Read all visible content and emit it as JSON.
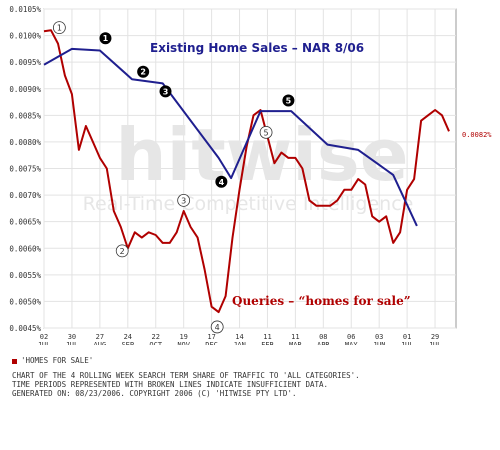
{
  "chart_data": {
    "type": "line",
    "y_ticks": [
      "0.0105%",
      "0.0100%",
      "0.0095%",
      "0.0090%",
      "0.0085%",
      "0.0080%",
      "0.0075%",
      "0.0070%",
      "0.0065%",
      "0.0060%",
      "0.0055%",
      "0.0050%",
      "0.0045%"
    ],
    "x_ticks": [
      {
        "day": "02",
        "mon": "JUL"
      },
      {
        "day": "30",
        "mon": "JUL"
      },
      {
        "day": "27",
        "mon": "AUG"
      },
      {
        "day": "24",
        "mon": "SEP"
      },
      {
        "day": "22",
        "mon": "OCT"
      },
      {
        "day": "19",
        "mon": "NOV"
      },
      {
        "day": "17",
        "mon": "DEC"
      },
      {
        "day": "14",
        "mon": "JAN"
      },
      {
        "day": "11",
        "mon": "FEB"
      },
      {
        "day": "11",
        "mon": "MAR"
      },
      {
        "day": "08",
        "mon": "APR"
      },
      {
        "day": "06",
        "mon": "MAY"
      },
      {
        "day": "03",
        "mon": "JUN"
      },
      {
        "day": "01",
        "mon": "JUL"
      },
      {
        "day": "29",
        "mon": "JUL"
      }
    ],
    "ylim": [
      0.0045,
      0.0105
    ],
    "watermark": {
      "main": "hitwise",
      "sub": "Real-Time Competitive Intelligence"
    },
    "annotations": {
      "title": "Existing Home Sales – NAR 8/06",
      "queries_label": "Queries – “homes for sale”",
      "last_value": "0.0082%"
    },
    "series": [
      {
        "name": "'HOMES FOR SALE'",
        "color": "#b00000",
        "points": [
          [
            0,
            0.01008
          ],
          [
            0.5,
            0.0101
          ],
          [
            1.0,
            0.00985
          ],
          [
            1.5,
            0.00925
          ],
          [
            2.0,
            0.0089
          ],
          [
            2.5,
            0.00785
          ],
          [
            3.0,
            0.0083
          ],
          [
            3.5,
            0.008
          ],
          [
            4.0,
            0.0077
          ],
          [
            4.5,
            0.0075
          ],
          [
            5.0,
            0.0067
          ],
          [
            5.5,
            0.0064
          ],
          [
            6.0,
            0.006
          ],
          [
            6.5,
            0.0063
          ],
          [
            7.0,
            0.0062
          ],
          [
            7.5,
            0.0063
          ],
          [
            8.0,
            0.00625
          ],
          [
            8.5,
            0.0061
          ],
          [
            9.0,
            0.0061
          ],
          [
            9.5,
            0.0063
          ],
          [
            10.0,
            0.0067
          ],
          [
            10.5,
            0.0064
          ],
          [
            11.0,
            0.0062
          ],
          [
            11.5,
            0.0056
          ],
          [
            12.0,
            0.0049
          ],
          [
            12.5,
            0.0048
          ],
          [
            13.0,
            0.0051
          ],
          [
            13.5,
            0.0062
          ],
          [
            14.0,
            0.0071
          ],
          [
            14.5,
            0.0079
          ],
          [
            15.0,
            0.0085
          ],
          [
            15.5,
            0.0086
          ],
          [
            16.0,
            0.0081
          ],
          [
            16.5,
            0.0076
          ],
          [
            17.0,
            0.0078
          ],
          [
            17.5,
            0.0077
          ],
          [
            18.0,
            0.0077
          ],
          [
            18.5,
            0.0075
          ],
          [
            19.0,
            0.0069
          ],
          [
            19.5,
            0.0068
          ],
          [
            20.0,
            0.0068
          ],
          [
            20.5,
            0.0068
          ],
          [
            21.0,
            0.0069
          ],
          [
            21.5,
            0.0071
          ],
          [
            22.0,
            0.0071
          ],
          [
            22.5,
            0.0073
          ],
          [
            23.0,
            0.0072
          ],
          [
            23.5,
            0.0066
          ],
          [
            24.0,
            0.0065
          ],
          [
            24.5,
            0.0066
          ],
          [
            25.0,
            0.0061
          ],
          [
            25.5,
            0.0063
          ],
          [
            26.0,
            0.0071
          ],
          [
            26.5,
            0.0073
          ],
          [
            27.0,
            0.0084
          ],
          [
            27.5,
            0.0085
          ],
          [
            28.0,
            0.0086
          ],
          [
            28.5,
            0.0085
          ],
          [
            29.0,
            0.0082
          ]
        ]
      },
      {
        "name": "Existing Home Sales",
        "color": "#1f1f8f",
        "points": [
          [
            0,
            0.00945
          ],
          [
            2.0,
            0.00975
          ],
          [
            4.0,
            0.00972
          ],
          [
            6.3,
            0.00918
          ],
          [
            8.5,
            0.0091
          ],
          [
            12.5,
            0.0077
          ],
          [
            13.4,
            0.00732
          ],
          [
            15.5,
            0.00858
          ],
          [
            17.7,
            0.00858
          ],
          [
            20.3,
            0.00795
          ],
          [
            22.5,
            0.00785
          ],
          [
            25.0,
            0.00738
          ],
          [
            26.7,
            0.00642
          ]
        ]
      }
    ],
    "open_markers": [
      {
        "label": "①",
        "x": 1.1,
        "y": 0.01015
      },
      {
        "label": "②",
        "x": 5.6,
        "y": 0.00595
      },
      {
        "label": "③",
        "x": 10.0,
        "y": 0.0069
      },
      {
        "label": "④",
        "x": 12.4,
        "y": 0.00452
      },
      {
        "label": "⑤",
        "x": 15.9,
        "y": 0.00818
      }
    ],
    "filled_markers": [
      {
        "label": "1",
        "x": 4.4,
        "y": 0.00995
      },
      {
        "label": "2",
        "x": 7.1,
        "y": 0.00932
      },
      {
        "label": "3",
        "x": 8.7,
        "y": 0.00895
      },
      {
        "label": "4",
        "x": 12.7,
        "y": 0.00725
      },
      {
        "label": "5",
        "x": 17.5,
        "y": 0.00878
      }
    ]
  },
  "legend": {
    "label": "'HOMES FOR SALE'"
  },
  "notes": [
    "CHART OF THE 4 ROLLING WEEK SEARCH TERM SHARE OF TRAFFIC TO 'ALL CATEGORIES'.",
    "TIME PERIODS REPRESENTED WITH BROKEN LINES INDICATE INSUFFICIENT DATA.",
    "GENERATED ON: 08/23/2006. COPYRIGHT 2006 (C) 'HITWISE PTY LTD'."
  ]
}
